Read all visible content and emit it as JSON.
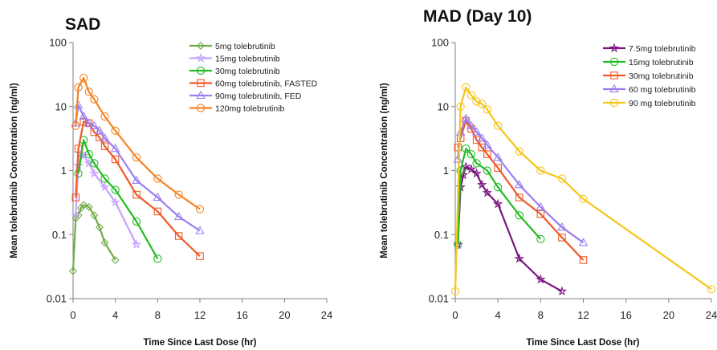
{
  "chart_data": [
    {
      "type": "line",
      "title": "SAD",
      "xlabel": "Time Since Last Dose (hr)",
      "ylabel": "Mean tolebrutinib Concentration (ng/ml)",
      "yscale": "log",
      "xlim": [
        0,
        24
      ],
      "ylim": [
        0.01,
        100
      ],
      "xticks": [
        "0",
        "4",
        "8",
        "12",
        "16",
        "20",
        "24"
      ],
      "yticks": [
        "0.01",
        "0.1",
        "1",
        "10",
        "100"
      ],
      "legend_position": "top-right",
      "series": [
        {
          "name": "5mg tolebrutinib",
          "color": "#70ad47",
          "marker": "diamond",
          "x": [
            0,
            0.25,
            0.5,
            0.75,
            1,
            1.5,
            2,
            2.5,
            3,
            4
          ],
          "y": [
            0.027,
            0.18,
            0.2,
            0.26,
            0.29,
            0.27,
            0.2,
            0.13,
            0.075,
            0.04
          ]
        },
        {
          "name": "15mg tolebrutinib",
          "color": "#c5a3ff",
          "marker": "star",
          "x": [
            0.25,
            0.5,
            0.75,
            1,
            1.5,
            2,
            3,
            4,
            6
          ],
          "y": [
            0.2,
            1.2,
            1.8,
            1.7,
            1.3,
            0.9,
            0.55,
            0.32,
            0.07
          ]
        },
        {
          "name": "30mg tolebrutinib",
          "color": "#22bb22",
          "marker": "circle",
          "x": [
            0.5,
            1,
            1.5,
            2,
            3,
            4,
            6,
            8
          ],
          "y": [
            0.9,
            3.0,
            1.8,
            1.3,
            0.75,
            0.5,
            0.16,
            0.042
          ]
        },
        {
          "name": "60mg tolebrutinib, FASTED",
          "color": "#f05a28",
          "marker": "square",
          "x": [
            0.25,
            0.5,
            1,
            1.5,
            2,
            2.5,
            3,
            4,
            6,
            8,
            10,
            12
          ],
          "y": [
            0.38,
            2.2,
            5.8,
            5.5,
            4.0,
            3.3,
            2.4,
            1.5,
            0.42,
            0.23,
            0.095,
            0.046
          ]
        },
        {
          "name": "90mg tolebrutinib, FED",
          "color": "#9b7ff0",
          "marker": "triangle",
          "x": [
            0.25,
            0.5,
            1,
            1.5,
            2,
            2.5,
            3,
            4,
            6,
            8,
            10,
            12
          ],
          "y": [
            5.5,
            10.5,
            7.0,
            5.5,
            5.0,
            4.2,
            3.2,
            2.2,
            0.7,
            0.38,
            0.19,
            0.115
          ]
        },
        {
          "name": "120mg tolebrutinib",
          "color": "#f58220",
          "marker": "circle",
          "x": [
            0.25,
            0.5,
            1,
            1.5,
            2,
            3,
            4,
            6,
            8,
            10,
            12
          ],
          "y": [
            5.0,
            20,
            28,
            17,
            13,
            7.0,
            4.2,
            1.6,
            0.75,
            0.42,
            0.25
          ]
        }
      ]
    },
    {
      "type": "line",
      "title": "MAD (Day 10)",
      "xlabel": "Time Since Last Dose (hr)",
      "ylabel": "Mean tolebrutinib Concentration (ng/ml)",
      "yscale": "log",
      "xlim": [
        0,
        24
      ],
      "ylim": [
        0.01,
        100
      ],
      "xticks": [
        "0",
        "4",
        "8",
        "12",
        "16",
        "20",
        "24"
      ],
      "yticks": [
        "0.01",
        "0.1",
        "1",
        "10",
        "100"
      ],
      "legend_position": "top-right",
      "series": [
        {
          "name": "7.5mg tolebrutinib",
          "color": "#7b1780",
          "marker": "star",
          "x": [
            0.25,
            0.5,
            0.75,
            1,
            1.5,
            2,
            2.5,
            3,
            4,
            6,
            8,
            10
          ],
          "y": [
            0.07,
            0.55,
            0.85,
            1.15,
            1.05,
            0.9,
            0.6,
            0.45,
            0.3,
            0.042,
            0.02,
            0.013
          ]
        },
        {
          "name": "15mg tolebrutinib",
          "color": "#22bb22",
          "marker": "circle",
          "x": [
            0.25,
            0.5,
            1,
            1.5,
            2,
            3,
            4,
            6,
            8
          ],
          "y": [
            0.07,
            1.0,
            2.2,
            1.8,
            1.3,
            1.0,
            0.55,
            0.2,
            0.085
          ]
        },
        {
          "name": "30mg tolebrutinib",
          "color": "#f05a28",
          "marker": "square",
          "x": [
            0.25,
            0.5,
            1,
            1.5,
            2,
            2.5,
            3,
            4,
            6,
            8,
            10,
            12
          ],
          "y": [
            2.3,
            3.2,
            6.0,
            4.5,
            3.0,
            2.3,
            1.8,
            1.1,
            0.38,
            0.21,
            0.09,
            0.04
          ]
        },
        {
          "name": "60 mg tolebrutinib",
          "color": "#9b7ff0",
          "marker": "triangle",
          "x": [
            0.25,
            0.5,
            1,
            1.5,
            2,
            2.5,
            3,
            4,
            6,
            8,
            10,
            12
          ],
          "y": [
            1.5,
            4.0,
            6.5,
            5.0,
            4.0,
            3.2,
            2.5,
            1.6,
            0.6,
            0.27,
            0.13,
            0.075
          ]
        },
        {
          "name": "90 mg tolebrutinib",
          "color": "#f5c518",
          "marker": "circle",
          "x": [
            0,
            0.5,
            1,
            1.5,
            2,
            2.5,
            3,
            4,
            6,
            8,
            10,
            12,
            24
          ],
          "y": [
            0.013,
            10.0,
            20,
            15,
            12,
            11,
            9.0,
            5.0,
            2.0,
            1.0,
            0.75,
            0.36,
            0.014
          ]
        }
      ]
    }
  ]
}
